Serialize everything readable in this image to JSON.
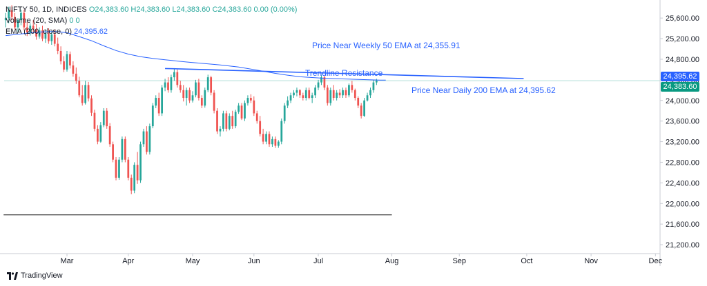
{
  "legend": {
    "symbol_line": "NIFTY 50, 1D, INDICES",
    "ohlc": {
      "o": "O24,383.60",
      "h": "H24,383.60",
      "l": "L24,383.60",
      "c": "C24,383.60",
      "chg": "0.00 (0.00%)"
    },
    "volume_label": "Volume (20, SMA)",
    "volume_values": "0  0",
    "ema_label": "EMA (200, close, 0)",
    "ema_value": "24,395.62"
  },
  "annotations": {
    "weekly_ema": "Price Near Weekly 50 EMA at 24,355.91",
    "trendline": "Trendline Resistance",
    "daily_ema": "Price Near Daily 200 EMA at 24,395.62"
  },
  "price_tags": {
    "ema": {
      "text": "24,395.62",
      "color": "#2962ff"
    },
    "last": {
      "text": "24,383.60",
      "color": "#089981"
    }
  },
  "brand": "TradingView",
  "colors": {
    "up": "#26a69a",
    "down": "#ef5350",
    "ema": "#2962ff",
    "trend": "#2962ff",
    "support": "#555555"
  },
  "chart_data": {
    "type": "candlestick",
    "ylim": [
      21000,
      25950
    ],
    "y_ticks": [
      21200,
      21600,
      22000,
      22400,
      22800,
      23200,
      23600,
      24000,
      24400,
      24800,
      25200,
      25600
    ],
    "y_tick_labels": [
      "21,200.00",
      "21,600.00",
      "22,000.00",
      "22,400.00",
      "22,800.00",
      "23,200.00",
      "23,600.00",
      "24,000.00",
      "24,400.00",
      "24,800.00",
      "25,200.00",
      "25,600.00"
    ],
    "x_labels": [
      "Mar",
      "Apr",
      "May",
      "Jun",
      "Jul",
      "Aug",
      "Sep",
      "Oct",
      "Nov",
      "Dec"
    ],
    "x_label_bars": [
      20,
      40,
      61,
      81,
      102,
      126,
      148,
      170,
      191,
      212
    ],
    "total_slots": 214,
    "candles": [
      [
        25560,
        25700,
        25420,
        25600
      ],
      [
        25600,
        25820,
        25500,
        25750
      ],
      [
        25750,
        25850,
        25560,
        25620
      ],
      [
        25620,
        25700,
        25380,
        25420
      ],
      [
        25420,
        25600,
        25320,
        25560
      ],
      [
        25560,
        25760,
        25460,
        25700
      ],
      [
        25700,
        25760,
        25360,
        25420
      ],
      [
        25420,
        25520,
        25250,
        25320
      ],
      [
        25320,
        25500,
        25260,
        25450
      ],
      [
        25450,
        25560,
        25320,
        25380
      ],
      [
        25380,
        25480,
        25180,
        25240
      ],
      [
        25240,
        25420,
        25200,
        25360
      ],
      [
        25360,
        25450,
        25150,
        25200
      ],
      [
        25200,
        25380,
        25120,
        25300
      ],
      [
        25300,
        25400,
        25100,
        25150
      ],
      [
        25150,
        25330,
        25080,
        25280
      ],
      [
        25280,
        25380,
        25050,
        25100
      ],
      [
        25100,
        25220,
        24900,
        24960
      ],
      [
        24960,
        25050,
        24700,
        24760
      ],
      [
        24760,
        24860,
        24550,
        24600
      ],
      [
        24600,
        24960,
        24560,
        24900
      ],
      [
        24900,
        24950,
        24620,
        24680
      ],
      [
        24680,
        24760,
        24460,
        24520
      ],
      [
        24520,
        24640,
        24320,
        24380
      ],
      [
        24380,
        24460,
        24060,
        24100
      ],
      [
        24100,
        24300,
        23900,
        23950
      ],
      [
        23950,
        24380,
        23920,
        24300
      ],
      [
        24300,
        24360,
        23980,
        24040
      ],
      [
        24040,
        24100,
        23700,
        23760
      ],
      [
        23760,
        23820,
        23400,
        23450
      ],
      [
        23450,
        23520,
        23150,
        23200
      ],
      [
        23200,
        23580,
        23180,
        23520
      ],
      [
        23520,
        23850,
        23480,
        23800
      ],
      [
        23800,
        23850,
        23450,
        23500
      ],
      [
        23500,
        23560,
        23100,
        23150
      ],
      [
        23150,
        23200,
        22800,
        22850
      ],
      [
        22850,
        22900,
        22450,
        22500
      ],
      [
        22500,
        22900,
        22460,
        22850
      ],
      [
        22850,
        23300,
        22800,
        23250
      ],
      [
        23250,
        23300,
        22800,
        22850
      ],
      [
        22850,
        22900,
        22450,
        22500
      ],
      [
        22500,
        22560,
        22180,
        22250
      ],
      [
        22250,
        22800,
        22200,
        22750
      ],
      [
        22750,
        23000,
        22380,
        22450
      ],
      [
        22450,
        23200,
        22400,
        23150
      ],
      [
        23150,
        23450,
        23100,
        23400
      ],
      [
        23400,
        23500,
        22950,
        23000
      ],
      [
        23000,
        23550,
        22950,
        23500
      ],
      [
        23500,
        23950,
        23460,
        23900
      ],
      [
        23900,
        24100,
        23850,
        24050
      ],
      [
        24050,
        24150,
        23700,
        23750
      ],
      [
        23750,
        24300,
        23700,
        24250
      ],
      [
        24250,
        24420,
        24180,
        24350
      ],
      [
        24350,
        24450,
        24150,
        24200
      ],
      [
        24200,
        24500,
        24150,
        24450
      ],
      [
        24450,
        24620,
        24380,
        24550
      ],
      [
        24550,
        24600,
        24250,
        24300
      ],
      [
        24300,
        24380,
        24150,
        24200
      ],
      [
        24200,
        24300,
        23980,
        24050
      ],
      [
        24050,
        24250,
        23900,
        24200
      ],
      [
        24200,
        24250,
        23950,
        24000
      ],
      [
        24000,
        24180,
        23960,
        24100
      ],
      [
        24100,
        24400,
        24060,
        24350
      ],
      [
        24350,
        24420,
        24000,
        24050
      ],
      [
        24050,
        24100,
        23850,
        23900
      ],
      [
        23900,
        24250,
        23860,
        24200
      ],
      [
        24200,
        24500,
        24160,
        24450
      ],
      [
        24450,
        24480,
        24100,
        24150
      ],
      [
        24150,
        24200,
        23750,
        23800
      ],
      [
        23800,
        23850,
        23350,
        23400
      ],
      [
        23400,
        23500,
        23300,
        23450
      ],
      [
        23450,
        23800,
        23400,
        23750
      ],
      [
        23750,
        23800,
        23400,
        23450
      ],
      [
        23450,
        23750,
        23420,
        23700
      ],
      [
        23700,
        23800,
        23450,
        23500
      ],
      [
        23500,
        23820,
        23460,
        23780
      ],
      [
        23780,
        23950,
        23740,
        23900
      ],
      [
        23900,
        23950,
        23620,
        23650
      ],
      [
        23650,
        24000,
        23600,
        23950
      ],
      [
        23950,
        24100,
        23900,
        24050
      ],
      [
        24050,
        24120,
        23950,
        24000
      ],
      [
        24000,
        24080,
        23700,
        23750
      ],
      [
        23750,
        23800,
        23550,
        23600
      ],
      [
        23600,
        23700,
        23300,
        23350
      ],
      [
        23350,
        23450,
        23150,
        23200
      ],
      [
        23200,
        23400,
        23150,
        23350
      ],
      [
        23350,
        23400,
        23100,
        23150
      ],
      [
        23150,
        23300,
        23100,
        23250
      ],
      [
        23250,
        23300,
        23080,
        23120
      ],
      [
        23120,
        23230,
        23080,
        23200
      ],
      [
        23200,
        23650,
        23150,
        23600
      ],
      [
        23600,
        23950,
        23550,
        23900
      ],
      [
        23900,
        24080,
        23850,
        24000
      ],
      [
        24000,
        24150,
        23950,
        24100
      ],
      [
        24100,
        24200,
        24050,
        24150
      ],
      [
        24150,
        24250,
        24080,
        24200
      ],
      [
        24200,
        24220,
        24050,
        24100
      ],
      [
        24100,
        24150,
        24000,
        24050
      ],
      [
        24050,
        24250,
        24000,
        24200
      ],
      [
        24200,
        24250,
        24020,
        24050
      ],
      [
        24050,
        24150,
        23950,
        24100
      ],
      [
        24100,
        24300,
        24050,
        24250
      ],
      [
        24250,
        24400,
        24200,
        24350
      ],
      [
        24350,
        24500,
        24300,
        24450
      ],
      [
        24450,
        24480,
        24200,
        24250
      ],
      [
        24250,
        24300,
        23900,
        23950
      ],
      [
        23950,
        24250,
        23900,
        24200
      ],
      [
        24200,
        24300,
        24000,
        24050
      ],
      [
        24050,
        24200,
        24000,
        24150
      ],
      [
        24150,
        24220,
        24050,
        24100
      ],
      [
        24100,
        24250,
        24050,
        24200
      ],
      [
        24200,
        24250,
        24050,
        24100
      ],
      [
        24100,
        24330,
        24060,
        24300
      ],
      [
        24300,
        24380,
        24150,
        24200
      ],
      [
        24200,
        24230,
        24000,
        24050
      ],
      [
        24050,
        24080,
        23850,
        23900
      ],
      [
        23900,
        23950,
        23650,
        23700
      ],
      [
        23700,
        24050,
        23680,
        24000
      ],
      [
        24000,
        24150,
        23980,
        24100
      ],
      [
        24100,
        24250,
        24050,
        24200
      ],
      [
        24200,
        24400,
        24150,
        24350
      ],
      [
        24350,
        24420,
        24300,
        24383.6
      ]
    ],
    "ema_200": [
      [
        0,
        25260
      ],
      [
        4,
        25285
      ],
      [
        8,
        25310
      ],
      [
        12,
        25330
      ],
      [
        16,
        25340
      ],
      [
        20,
        25315
      ],
      [
        24,
        25240
      ],
      [
        28,
        25160
      ],
      [
        32,
        25060
      ],
      [
        36,
        24970
      ],
      [
        40,
        24900
      ],
      [
        44,
        24850
      ],
      [
        48,
        24815
      ],
      [
        52,
        24790
      ],
      [
        56,
        24765
      ],
      [
        60,
        24740
      ],
      [
        64,
        24720
      ],
      [
        70,
        24690
      ],
      [
        76,
        24650
      ],
      [
        82,
        24590
      ],
      [
        88,
        24525
      ],
      [
        92,
        24490
      ],
      [
        96,
        24460
      ],
      [
        100,
        24445
      ],
      [
        104,
        24430
      ],
      [
        110,
        24418
      ],
      [
        116,
        24406
      ],
      [
        122,
        24396
      ],
      [
        124,
        24395.62
      ]
    ],
    "trendline": {
      "x": [
        52,
        169
      ],
      "y": [
        24620,
        24425
      ],
      "label": "Trendline Resistance"
    },
    "support_line": {
      "x": [
        0,
        126
      ],
      "y": 21780
    },
    "last_price": 24383.6,
    "ema_last": 24395.62
  }
}
